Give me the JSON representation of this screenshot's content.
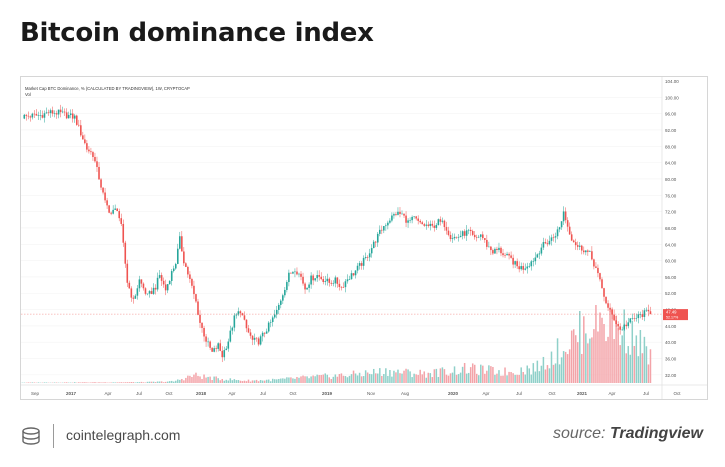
{
  "page": {
    "title": "Bitcoin dominance index",
    "site": "cointelegraph.com",
    "source_prefix": "source:",
    "source_name": "Tradingview"
  },
  "chart_data": {
    "type": "candlestick",
    "header": "Market Cap BTC Dominance, % (CALCULATED BY TRADINGVIEW), 1W, CRYPTOCAP",
    "subheader": "Vol",
    "y_ticks": [
      "100.00",
      "96.00",
      "92.00",
      "88.00",
      "84.00",
      "80.00",
      "76.00",
      "72.00",
      "68.00",
      "64.00",
      "60.00",
      "56.00",
      "52.00",
      "48.00",
      "44.00",
      "40.00",
      "36.00",
      "32.00"
    ],
    "y_top_label": "104.00",
    "ylim": [
      30.5,
      104
    ],
    "x_ticks": [
      "Sep",
      "2017",
      "Apr",
      "Jul",
      "Oct",
      "2018",
      "Apr",
      "Jul",
      "Oct",
      "2019",
      "Nov",
      "Aug",
      "2020",
      "Apr",
      "Jul",
      "Oct",
      "2021",
      "Apr",
      "Jul",
      "Oct"
    ],
    "current_value": "47.49",
    "current_sub": "52.17%",
    "price_anchors": [
      [
        0,
        95.3
      ],
      [
        9,
        95.6
      ],
      [
        13,
        96.3
      ],
      [
        18,
        96.2
      ],
      [
        22,
        95.6
      ],
      [
        26,
        95.1
      ],
      [
        29,
        91.2
      ],
      [
        32,
        87.4
      ],
      [
        35,
        86.0
      ],
      [
        38,
        80.3
      ],
      [
        41,
        74.2
      ],
      [
        44,
        71.5
      ],
      [
        47,
        72.8
      ],
      [
        49,
        68.2
      ],
      [
        52,
        54.8
      ],
      [
        55,
        50.0
      ],
      [
        58,
        55.2
      ],
      [
        62,
        51.2
      ],
      [
        66,
        53.6
      ],
      [
        68,
        56.4
      ],
      [
        71,
        52.8
      ],
      [
        73,
        55.8
      ],
      [
        76,
        59.6
      ],
      [
        78,
        65.2
      ],
      [
        80,
        60.0
      ],
      [
        83,
        55.2
      ],
      [
        86,
        49.8
      ],
      [
        88,
        44.8
      ],
      [
        91,
        40.5
      ],
      [
        94,
        37.4
      ],
      [
        97,
        39.2
      ],
      [
        99,
        36.7
      ],
      [
        102,
        40.4
      ],
      [
        105,
        45.9
      ],
      [
        108,
        47.8
      ],
      [
        111,
        43.3
      ],
      [
        114,
        40.4
      ],
      [
        117,
        40.2
      ],
      [
        120,
        42.4
      ],
      [
        123,
        44.8
      ],
      [
        126,
        47.5
      ],
      [
        129,
        52.0
      ],
      [
        132,
        56.4
      ],
      [
        135,
        58.1
      ],
      [
        138,
        56.0
      ],
      [
        140,
        53.2
      ],
      [
        143,
        55.6
      ],
      [
        146,
        56.4
      ],
      [
        149,
        55.4
      ],
      [
        152,
        54.6
      ],
      [
        155,
        55.1
      ],
      [
        158,
        53.5
      ],
      [
        161,
        55.6
      ],
      [
        164,
        56.9
      ],
      [
        167,
        58.7
      ],
      [
        170,
        60.5
      ],
      [
        173,
        63.2
      ],
      [
        176,
        66.0
      ],
      [
        179,
        68.5
      ],
      [
        182,
        70.2
      ],
      [
        185,
        71.6
      ],
      [
        188,
        71.3
      ],
      [
        191,
        69.4
      ],
      [
        194,
        70.3
      ],
      [
        197,
        68.9
      ],
      [
        200,
        68.6
      ],
      [
        203,
        68.2
      ],
      [
        206,
        69.5
      ],
      [
        209,
        68.9
      ],
      [
        212,
        66.0
      ],
      [
        215,
        65.6
      ],
      [
        218,
        66.5
      ],
      [
        221,
        67.1
      ],
      [
        224,
        65.2
      ],
      [
        227,
        66.4
      ],
      [
        230,
        63.8
      ],
      [
        233,
        62.2
      ],
      [
        236,
        62.7
      ],
      [
        239,
        61.2
      ],
      [
        242,
        60.3
      ],
      [
        245,
        58.5
      ],
      [
        248,
        58.2
      ],
      [
        251,
        59.3
      ],
      [
        254,
        60.8
      ],
      [
        257,
        63.4
      ],
      [
        260,
        64.5
      ],
      [
        263,
        65.8
      ],
      [
        266,
        68.0
      ],
      [
        268,
        72.0
      ],
      [
        270,
        68.4
      ],
      [
        272,
        65.6
      ],
      [
        275,
        63.4
      ],
      [
        278,
        62.8
      ],
      [
        281,
        61.5
      ],
      [
        284,
        58.1
      ],
      [
        287,
        53.1
      ],
      [
        290,
        48.2
      ],
      [
        293,
        45.8
      ],
      [
        296,
        43.0
      ],
      [
        299,
        44.4
      ],
      [
        302,
        45.5
      ],
      [
        305,
        46.3
      ],
      [
        308,
        47.1
      ],
      [
        311,
        47.5
      ]
    ],
    "volume_anchors": [
      [
        0,
        0.005
      ],
      [
        60,
        0.01
      ],
      [
        75,
        0.02
      ],
      [
        85,
        0.1
      ],
      [
        95,
        0.06
      ],
      [
        110,
        0.03
      ],
      [
        125,
        0.04
      ],
      [
        140,
        0.07
      ],
      [
        160,
        0.1
      ],
      [
        180,
        0.15
      ],
      [
        200,
        0.12
      ],
      [
        220,
        0.18
      ],
      [
        240,
        0.14
      ],
      [
        255,
        0.2
      ],
      [
        270,
        0.5
      ],
      [
        285,
        0.85
      ],
      [
        300,
        0.65
      ],
      [
        311,
        0.35
      ]
    ]
  }
}
